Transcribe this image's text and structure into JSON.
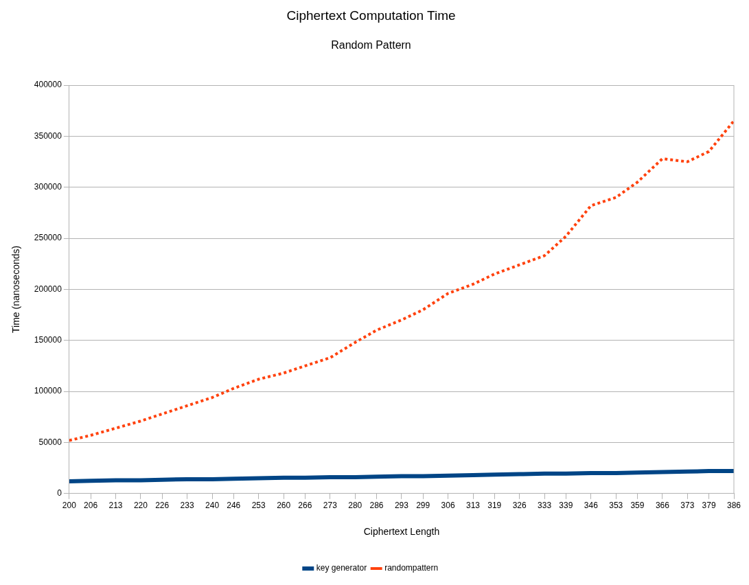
{
  "chart_data": {
    "type": "line",
    "title": "Ciphertext Computation Time",
    "subtitle": "Random Pattern",
    "xlabel": "Ciphertext Length",
    "ylabel": "Time (nanoseconds)",
    "x": [
      200,
      206,
      213,
      220,
      226,
      233,
      240,
      246,
      253,
      260,
      266,
      273,
      280,
      286,
      293,
      299,
      306,
      313,
      319,
      326,
      333,
      339,
      346,
      353,
      359,
      366,
      373,
      379,
      386
    ],
    "xlim": [
      200,
      386
    ],
    "xticks": [
      200,
      206,
      213,
      220,
      226,
      233,
      240,
      246,
      253,
      260,
      266,
      273,
      280,
      286,
      293,
      299,
      306,
      313,
      319,
      326,
      333,
      339,
      346,
      353,
      359,
      366,
      373,
      379,
      386
    ],
    "ylim": [
      0,
      400000
    ],
    "yticks": [
      0,
      50000,
      100000,
      150000,
      200000,
      250000,
      300000,
      350000,
      400000
    ],
    "grid": "y",
    "legend": "bottom",
    "marker": "none",
    "series": [
      {
        "name": "key generator",
        "color": "#004586",
        "line_style": "solid",
        "values": [
          12000,
          12500,
          13000,
          13000,
          13500,
          14000,
          14000,
          14500,
          15000,
          15500,
          15500,
          16000,
          16000,
          16500,
          17000,
          17000,
          17500,
          18000,
          18500,
          19000,
          19500,
          19500,
          20000,
          20000,
          20500,
          21000,
          21500,
          22000,
          22000
        ]
      },
      {
        "name": "randompattern",
        "color": "#ff420e",
        "line_style": "dotted",
        "values": [
          52000,
          57000,
          64000,
          71000,
          78000,
          86000,
          94000,
          103000,
          112000,
          118000,
          125000,
          133000,
          148000,
          160000,
          170000,
          180000,
          196000,
          205000,
          215000,
          224000,
          233000,
          252000,
          282000,
          290000,
          305000,
          328000,
          325000,
          335000,
          365000
        ]
      }
    ]
  }
}
